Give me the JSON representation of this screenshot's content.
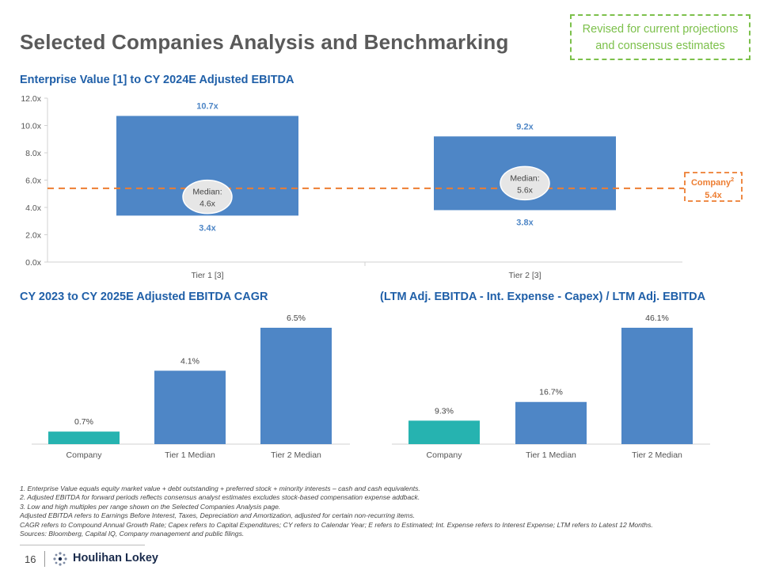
{
  "page_title": "Selected Companies Analysis and Benchmarking",
  "revised_note": {
    "line1": "Revised for current projections",
    "line2": "and consensus estimates"
  },
  "section1_title": "Enterprise Value [1] to CY 2024E Adjusted EBITDA",
  "section2_title": "CY 2023 to CY 2025E Adjusted EBITDA CAGR",
  "section3_title": "(LTM Adj. EBITDA - Int. Expense - Capex) / LTM Adj. EBITDA",
  "chart_data": [
    {
      "type": "range_bar",
      "title": "Enterprise Value [1] to CY 2024E Adjusted EBITDA",
      "categories": [
        "Tier 1 [3]",
        "Tier 2 [3]"
      ],
      "lows": [
        3.4,
        3.8
      ],
      "highs": [
        10.7,
        9.2
      ],
      "medians": [
        4.6,
        5.6
      ],
      "low_labels": [
        "3.4x",
        "3.8x"
      ],
      "high_labels": [
        "10.7x",
        "9.2x"
      ],
      "median_labels": [
        "4.6x",
        "5.6x"
      ],
      "median_prefix": "Median:",
      "reference_line": {
        "label": "Company",
        "superscript": "2",
        "value": 5.4,
        "value_label": "5.4x",
        "color": "#ed7d31"
      },
      "yticks": [
        "0.0x",
        "2.0x",
        "4.0x",
        "6.0x",
        "8.0x",
        "10.0x",
        "12.0x"
      ],
      "ylim": [
        0,
        12
      ],
      "color": "#4e86c6"
    },
    {
      "type": "bar",
      "title": "CY 2023 to CY 2025E Adjusted EBITDA CAGR",
      "categories": [
        "Company",
        "Tier 1 Median",
        "Tier 2 Median"
      ],
      "values": [
        0.7,
        4.1,
        6.5
      ],
      "labels": [
        "0.7%",
        "4.1%",
        "6.5%"
      ],
      "colors": [
        "#26b3b0",
        "#4e86c6",
        "#4e86c6"
      ],
      "ylim": [
        0,
        6.5
      ]
    },
    {
      "type": "bar",
      "title": "(LTM Adj. EBITDA - Int. Expense - Capex) / LTM Adj. EBITDA",
      "categories": [
        "Company",
        "Tier 1 Median",
        "Tier 2 Median"
      ],
      "values": [
        9.3,
        16.7,
        46.1
      ],
      "labels": [
        "9.3%",
        "16.7%",
        "46.1%"
      ],
      "colors": [
        "#26b3b0",
        "#4e86c6",
        "#4e86c6"
      ],
      "ylim": [
        0,
        46.1
      ]
    }
  ],
  "footnotes": [
    "1. Enterprise Value equals equity market value + debt outstanding + preferred stock + minority interests – cash and cash equivalents.",
    "2. Adjusted EBITDA for forward periods reflects consensus analyst estimates excludes stock-based compensation expense addback.",
    "3. Low and high multiples per range shown on the Selected Companies Analysis page.",
    "Adjusted EBITDA refers to Earnings Before Interest, Taxes, Depreciation and Amortization, adjusted for certain non-recurring items.",
    "CAGR refers to Compound Annual Growth Rate; Capex refers to Capital Expenditures; CY refers to Calendar Year; E refers to Estimated; Int. Expense refers to Interest Expense; LTM refers to Latest 12 Months.",
    "Sources: Bloomberg, Capital IQ, Company management and public filings."
  ],
  "page_number": "16",
  "brand": "Houlihan Lokey"
}
